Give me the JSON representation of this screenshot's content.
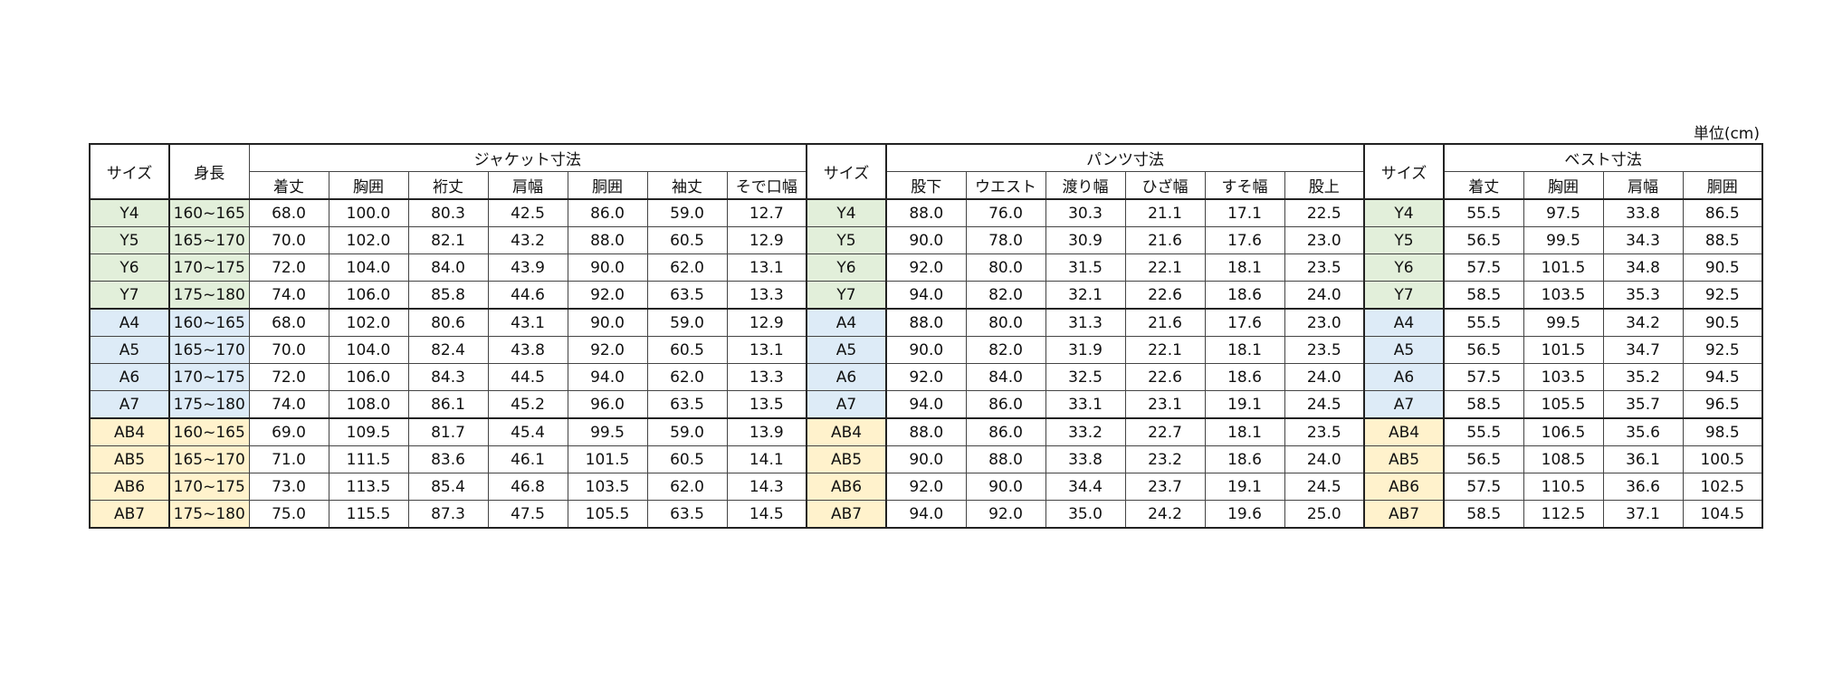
{
  "unit": "単位(cm)",
  "header": {
    "size": "サイズ",
    "height": "身長",
    "jacket": {
      "title": "ジャケット寸法",
      "columns": [
        "着丈",
        "胸囲",
        "裄丈",
        "肩幅",
        "胴囲",
        "袖丈",
        "そで口幅"
      ]
    },
    "pants_size": "サイズ",
    "pants": {
      "title": "パンツ寸法",
      "columns": [
        "股下",
        "ウエスト",
        "渡り幅",
        "ひざ幅",
        "すそ幅",
        "股上"
      ]
    },
    "vest_size": "サイズ",
    "vest": {
      "title": "ベスト寸法",
      "columns": [
        "着丈",
        "胸囲",
        "肩幅",
        "胴囲"
      ]
    }
  },
  "sections": [
    {
      "color": "#e2efda",
      "rows": [
        [
          "Y4",
          "160~165",
          "68.0",
          "100.0",
          "80.3",
          "42.5",
          "86.0",
          "59.0",
          "12.7",
          "Y4",
          "88.0",
          "76.0",
          "30.3",
          "21.1",
          "17.1",
          "22.5",
          "Y4",
          "55.5",
          "97.5",
          "33.8",
          "86.5"
        ],
        [
          "Y5",
          "165~170",
          "70.0",
          "102.0",
          "82.1",
          "43.2",
          "88.0",
          "60.5",
          "12.9",
          "Y5",
          "90.0",
          "78.0",
          "30.9",
          "21.6",
          "17.6",
          "23.0",
          "Y5",
          "56.5",
          "99.5",
          "34.3",
          "88.5"
        ],
        [
          "Y6",
          "170~175",
          "72.0",
          "104.0",
          "84.0",
          "43.9",
          "90.0",
          "62.0",
          "13.1",
          "Y6",
          "92.0",
          "80.0",
          "31.5",
          "22.1",
          "18.1",
          "23.5",
          "Y6",
          "57.5",
          "101.5",
          "34.8",
          "90.5"
        ],
        [
          "Y7",
          "175~180",
          "74.0",
          "106.0",
          "85.8",
          "44.6",
          "92.0",
          "63.5",
          "13.3",
          "Y7",
          "94.0",
          "82.0",
          "32.1",
          "22.6",
          "18.6",
          "24.0",
          "Y7",
          "58.5",
          "103.5",
          "35.3",
          "92.5"
        ]
      ]
    },
    {
      "color": "#ddebf7",
      "rows": [
        [
          "A4",
          "160~165",
          "68.0",
          "102.0",
          "80.6",
          "43.1",
          "90.0",
          "59.0",
          "12.9",
          "A4",
          "88.0",
          "80.0",
          "31.3",
          "21.6",
          "17.6",
          "23.0",
          "A4",
          "55.5",
          "99.5",
          "34.2",
          "90.5"
        ],
        [
          "A5",
          "165~170",
          "70.0",
          "104.0",
          "82.4",
          "43.8",
          "92.0",
          "60.5",
          "13.1",
          "A5",
          "90.0",
          "82.0",
          "31.9",
          "22.1",
          "18.1",
          "23.5",
          "A5",
          "56.5",
          "101.5",
          "34.7",
          "92.5"
        ],
        [
          "A6",
          "170~175",
          "72.0",
          "106.0",
          "84.3",
          "44.5",
          "94.0",
          "62.0",
          "13.3",
          "A6",
          "92.0",
          "84.0",
          "32.5",
          "22.6",
          "18.6",
          "24.0",
          "A6",
          "57.5",
          "103.5",
          "35.2",
          "94.5"
        ],
        [
          "A7",
          "175~180",
          "74.0",
          "108.0",
          "86.1",
          "45.2",
          "96.0",
          "63.5",
          "13.5",
          "A7",
          "94.0",
          "86.0",
          "33.1",
          "23.1",
          "19.1",
          "24.5",
          "A7",
          "58.5",
          "105.5",
          "35.7",
          "96.5"
        ]
      ]
    },
    {
      "color": "#fff2cc",
      "rows": [
        [
          "AB4",
          "160~165",
          "69.0",
          "109.5",
          "81.7",
          "45.4",
          "99.5",
          "59.0",
          "13.9",
          "AB4",
          "88.0",
          "86.0",
          "33.2",
          "22.7",
          "18.1",
          "23.5",
          "AB4",
          "55.5",
          "106.5",
          "35.6",
          "98.5"
        ],
        [
          "AB5",
          "165~170",
          "71.0",
          "111.5",
          "83.6",
          "46.1",
          "101.5",
          "60.5",
          "14.1",
          "AB5",
          "90.0",
          "88.0",
          "33.8",
          "23.2",
          "18.6",
          "24.0",
          "AB5",
          "56.5",
          "108.5",
          "36.1",
          "100.5"
        ],
        [
          "AB6",
          "170~175",
          "73.0",
          "113.5",
          "85.4",
          "46.8",
          "103.5",
          "62.0",
          "14.3",
          "AB6",
          "92.0",
          "90.0",
          "34.4",
          "23.7",
          "19.1",
          "24.5",
          "AB6",
          "57.5",
          "110.5",
          "36.6",
          "102.5"
        ],
        [
          "AB7",
          "175~180",
          "75.0",
          "115.5",
          "87.3",
          "47.5",
          "105.5",
          "63.5",
          "14.5",
          "AB7",
          "94.0",
          "92.0",
          "35.0",
          "24.2",
          "19.6",
          "25.0",
          "AB7",
          "58.5",
          "112.5",
          "37.1",
          "104.5"
        ]
      ]
    }
  ]
}
